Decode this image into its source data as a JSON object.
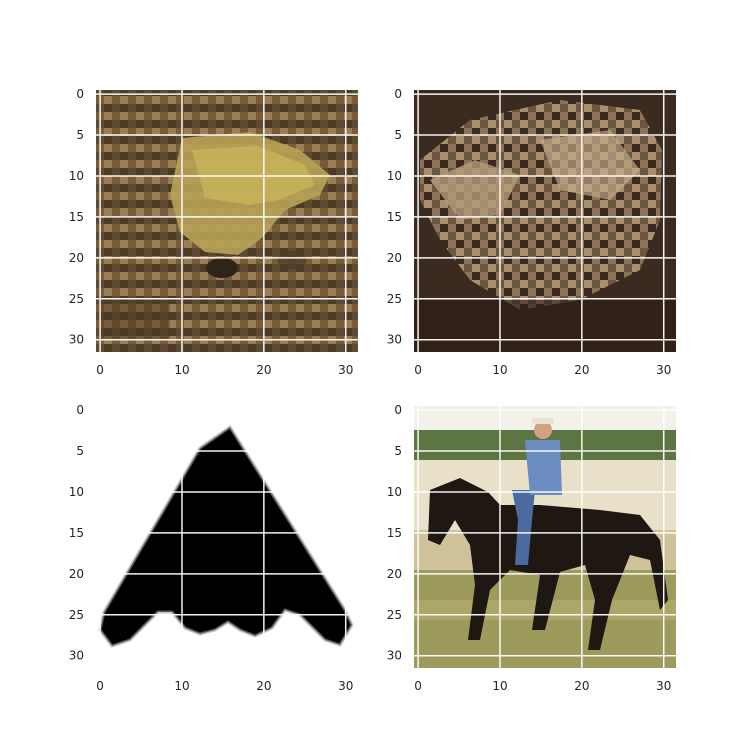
{
  "figure": {
    "panels": [
      {
        "name": "frog-image-1",
        "subject": "frog on ground",
        "x_ticks": [
          "0",
          "10",
          "20",
          "30"
        ],
        "y_ticks": [
          "0",
          "5",
          "10",
          "15",
          "20",
          "25",
          "30"
        ]
      },
      {
        "name": "frog-image-2",
        "subject": "toad close-up",
        "x_ticks": [
          "0",
          "10",
          "20",
          "30"
        ],
        "y_ticks": [
          "0",
          "5",
          "10",
          "15",
          "20",
          "25",
          "30"
        ]
      },
      {
        "name": "airplane-silhouette-image",
        "subject": "black airplane silhouette on white",
        "x_ticks": [
          "0",
          "10",
          "20",
          "30"
        ],
        "y_ticks": [
          "0",
          "5",
          "10",
          "15",
          "20",
          "25",
          "30"
        ]
      },
      {
        "name": "horse-rider-image",
        "subject": "rider on dark horse in field",
        "x_ticks": [
          "0",
          "10",
          "20",
          "30"
        ],
        "y_ticks": [
          "0",
          "5",
          "10",
          "15",
          "20",
          "25",
          "30"
        ]
      }
    ],
    "colors": {
      "grid": "#ffffff",
      "tick_text": "#262626",
      "frog_base": "#6b5233",
      "frog_highlight": "#c8b35a",
      "toad_base": "#4a3628",
      "toad_highlight": "#c4ad8c",
      "silhouette": "#000000",
      "horse_sky": "#f4f1ea",
      "horse_field": "#9c9b5b",
      "horse_body": "#1f1712",
      "rider_shirt": "#6a8cc0"
    }
  }
}
